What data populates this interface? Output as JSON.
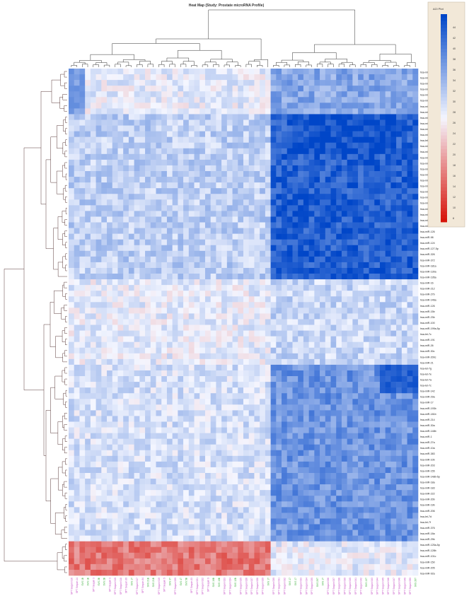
{
  "chart_data": {
    "type": "heatmap",
    "title": "Heat Map (Study: Prostate microRNA Profile)",
    "legend": {
      "title": "ΔCt Plot",
      "ticks": [
        44,
        42,
        40,
        38,
        36,
        34,
        32,
        30,
        28,
        26,
        24,
        22,
        20,
        18,
        16,
        14,
        12,
        10,
        8
      ],
      "placement": "top-right",
      "colors": {
        "low": "#c00000",
        "mid": "#f4f4ff",
        "high": "#0050d8"
      }
    },
    "row_labels": [
      "hsa-miR-9",
      "hsa-miR-122",
      "hsa-miR-135b",
      "hsa-miR-199b",
      "hsa-miR-218",
      "hsa-miR-182a-5p",
      "hsa-miR-122",
      "hsa-miR-210",
      "hsa-miR-148",
      "hsa-miR-142-5p",
      "hsa-miR-96",
      "hsa-miR-335",
      "hsa-let-7i",
      "hsa-miR-210",
      "hsa-miR-139",
      "hsa-miR-184",
      "hsa-miR-7",
      "hsa-miR-14b",
      "hsa-miR-92",
      "hsa-miR-140-5p",
      "hsa-miR-15a",
      "hsa-miR-375",
      "hsa-miR-134",
      "hsa-miR-24-5p",
      "hsa-miR-146a",
      "hsa-miR-301a",
      "hsa-miR-34a",
      "hsa-miR-181d",
      "hsa-miR-126",
      "hsa-miR-98",
      "hsa-miR-124",
      "hsa-miR-127-5p",
      "hsa-miR-326",
      "hsa-miR-372",
      "hsa-miR-181a",
      "hsa-miR-130a",
      "hsa-miR-195a",
      "hsa-miR-16",
      "hsa-miR-212",
      "hsa-miR-27b",
      "hsa-miR-146a",
      "hsa-miR-126",
      "hsa-miR-15b",
      "hsa-miR-23b",
      "hsa-miR-100",
      "hsa-miR-199a-5p",
      "hsa-let-7c",
      "hsa-miR-191",
      "hsa-miR-26",
      "hsa-miR-30c",
      "hsa-miR-200c",
      "hsa-miR-21",
      "hsa-let-7g",
      "hsa-let-7e",
      "hsa-let-7a",
      "hsa-let-7c",
      "hsa-miR-142",
      "hsa-miR-29a",
      "hsa-miR-17",
      "hsa-miR-193b",
      "hsa-miR-181b",
      "hsa-miR-214",
      "hsa-miR-30a",
      "hsa-miR-148b",
      "hsa-miR-1",
      "hsa-miR-27a",
      "hsa-miR-10a",
      "hsa-miR-383",
      "hsa-miR-10b",
      "hsa-miR-203",
      "hsa-miR-155",
      "hsa-miR-148b-5p",
      "hsa-miR-18a",
      "hsa-miR-183",
      "hsa-miR-222",
      "hsa-miR-20b",
      "hsa-miR-19b",
      "hsa-miR-206",
      "hsa-let-7d",
      "hsa-let-7f",
      "hsa-miR-376",
      "hsa-miR-18a",
      "hsa-miR-29b",
      "hsa-miR-125a-5p",
      "hsa-miR-128b",
      "hsa-miR-101c",
      "hsa-miR-150",
      "hsa-miR-205",
      "hsa-miR-92a"
    ],
    "col_labels": [
      {
        "label": "SPT Sequin 016",
        "group": "tumor"
      },
      {
        "label": "SPT Sequin 14",
        "group": "tumor"
      },
      {
        "label": "SVS 1B",
        "group": "normal"
      },
      {
        "label": "SVS 1B",
        "group": "normal"
      },
      {
        "label": "SPT Sequin 3",
        "group": "tumor"
      },
      {
        "label": "SVS 2B",
        "group": "normal"
      },
      {
        "label": "SVS 2B",
        "group": "normal"
      },
      {
        "label": "SPT Sequin 3",
        "group": "tumor"
      },
      {
        "label": "SPT Sequin 015",
        "group": "tumor"
      },
      {
        "label": "SPT Sequin 018",
        "group": "tumor"
      },
      {
        "label": "SPT Sequin 30",
        "group": "tumor"
      },
      {
        "label": "SVS 1T",
        "group": "normal"
      },
      {
        "label": "SPT Sequin 017",
        "group": "tumor"
      },
      {
        "label": "SPT Sequin 34",
        "group": "tumor"
      },
      {
        "label": "SVS 21B",
        "group": "normal"
      },
      {
        "label": "SVS 21B",
        "group": "normal"
      },
      {
        "label": "SPT Sequin 019",
        "group": "tumor"
      },
      {
        "label": "SPT Sequin 5",
        "group": "tumor"
      },
      {
        "label": "SVS 3T",
        "group": "normal"
      },
      {
        "label": "SPT Sequin 020",
        "group": "tumor"
      },
      {
        "label": "SVS 4T",
        "group": "normal"
      },
      {
        "label": "SVS 5B",
        "group": "normal"
      },
      {
        "label": "SPT Sequin 33",
        "group": "tumor"
      },
      {
        "label": "SPT Sequin 021",
        "group": "tumor"
      },
      {
        "label": "SPT Sequin 022",
        "group": "tumor"
      },
      {
        "label": "SPT Sequin 9",
        "group": "tumor"
      },
      {
        "label": "SVS 19B",
        "group": "normal"
      },
      {
        "label": "SVS 10B",
        "group": "normal"
      },
      {
        "label": "SPT Sequin 023",
        "group": "tumor"
      },
      {
        "label": "SPT Sequin 024",
        "group": "tumor"
      },
      {
        "label": "SVS 12B",
        "group": "normal"
      },
      {
        "label": "SPT Sequin 025",
        "group": "tumor"
      },
      {
        "label": "SPT Sequin 026",
        "group": "tumor"
      },
      {
        "label": "SPT Sequin 027",
        "group": "tumor"
      },
      {
        "label": "SPT Sequin 028",
        "group": "tumor"
      },
      {
        "label": "SPT Sequin 029",
        "group": "tumor"
      },
      {
        "label": "SVS 1T",
        "group": "normal"
      },
      {
        "label": "SPT Sequin 030",
        "group": "tumor"
      },
      {
        "label": "SPT Sequin 031",
        "group": "tumor"
      },
      {
        "label": "SPT Sequin 032",
        "group": "tumor"
      },
      {
        "label": "SVS 17",
        "group": "normal"
      },
      {
        "label": "SVS 17",
        "group": "normal"
      },
      {
        "label": "SPT Sequin 033",
        "group": "tumor"
      },
      {
        "label": "SPT Sequin 034",
        "group": "tumor"
      },
      {
        "label": "SPT Sequin 035",
        "group": "tumor"
      },
      {
        "label": "SVS 20T",
        "group": "normal"
      },
      {
        "label": "SVS 1T",
        "group": "normal"
      },
      {
        "label": "SPT Sequin 036",
        "group": "tumor"
      },
      {
        "label": "SPT Sequin 037",
        "group": "tumor"
      },
      {
        "label": "SPT Sequin 038",
        "group": "tumor"
      },
      {
        "label": "SPT Sequin 039",
        "group": "tumor"
      },
      {
        "label": "SPT Sequin 040",
        "group": "tumor"
      },
      {
        "label": "SPT Sequin 041",
        "group": "tumor"
      },
      {
        "label": "SPT Sequin 042",
        "group": "tumor"
      },
      {
        "label": "SVS 13T",
        "group": "normal"
      },
      {
        "label": "SPT Sequin 043",
        "group": "tumor"
      },
      {
        "label": "SPT Sequin 044",
        "group": "tumor"
      },
      {
        "label": "SPT Sequin 045",
        "group": "tumor"
      },
      {
        "label": "SPT Sequin 046",
        "group": "tumor"
      },
      {
        "label": "SPT Sequin 047",
        "group": "tumor"
      },
      {
        "label": "SPT Sequin 048",
        "group": "tumor"
      },
      {
        "label": "SPT Sequin 049",
        "group": "tumor"
      },
      {
        "label": "SPT Sequin 050",
        "group": "tumor"
      },
      {
        "label": "SVS 26T",
        "group": "normal"
      }
    ],
    "cluster_blocks": {
      "row_splits": [
        8,
        37,
        52,
        83,
        89
      ],
      "col_split": 37,
      "block_means": [
        [
          0.05,
          0.45
        ],
        [
          0.22,
          0.85
        ],
        [
          0.05,
          0.18
        ],
        [
          0.12,
          0.55
        ],
        [
          -0.55,
          0.05
        ]
      ]
    },
    "label_colors": {
      "tumor": "#c040c0",
      "normal": "#33aa33",
      "row": "#222222"
    }
  }
}
